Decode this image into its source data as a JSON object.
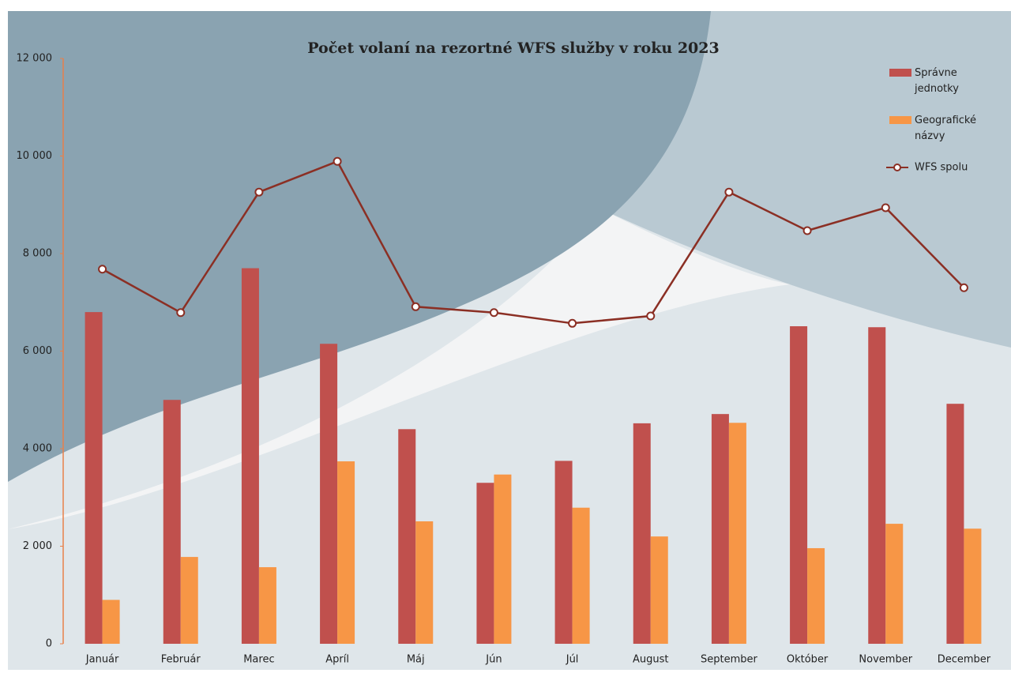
{
  "chart_data": {
    "type": "bar_line",
    "title": "Počet volaní na rezortné WFS služby v roku 2023",
    "categories": [
      "Január",
      "Február",
      "Marec",
      "Apríl",
      "Máj",
      "Jún",
      "Júl",
      "August",
      "September",
      "Október",
      "November",
      "December"
    ],
    "series": [
      {
        "name": "Správne jednotky",
        "type": "bar",
        "color": "#c0504d",
        "values": [
          6800,
          5000,
          7700,
          6150,
          4400,
          3300,
          3750,
          4520,
          4710,
          6510,
          6490,
          4920
        ]
      },
      {
        "name": "Geografické názvy",
        "type": "bar",
        "color": "#f79646",
        "values": [
          900,
          1780,
          1570,
          3740,
          2510,
          3470,
          2790,
          2200,
          4530,
          1960,
          2460,
          2360
        ]
      },
      {
        "name": "WFS spolu",
        "type": "line",
        "color": "#8b2f24",
        "values": [
          7680,
          6790,
          9260,
          9890,
          6910,
          6790,
          6570,
          6720,
          9260,
          8470,
          8940,
          7300
        ]
      }
    ],
    "ylim": [
      0,
      12000
    ],
    "yticks": [
      0,
      {
        "value": 2000,
        "label": "2 000"
      },
      {
        "value": 4000,
        "label": "4 000"
      },
      {
        "value": 6000,
        "label": "6 000"
      },
      {
        "value": 8000,
        "label": "8 000"
      },
      {
        "value": 10000,
        "label": "10 000"
      },
      {
        "value": 12000,
        "label": "12 000"
      }
    ],
    "legend": "top-right"
  }
}
